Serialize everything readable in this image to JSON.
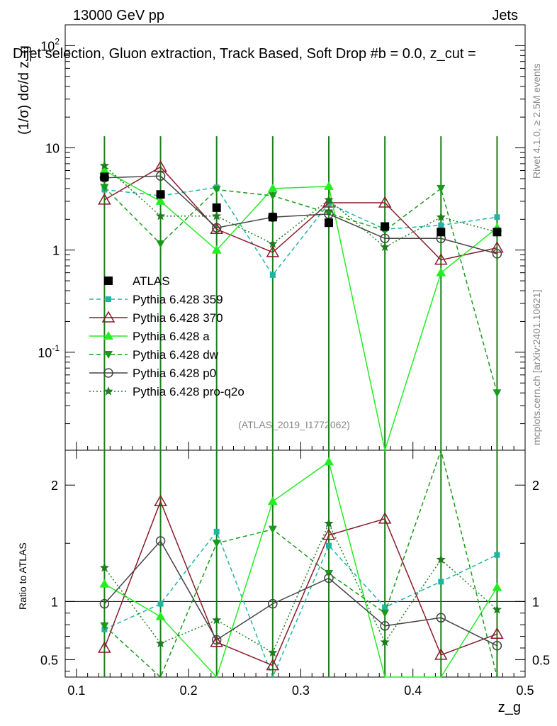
{
  "header": {
    "energy": "13000 GeV pp",
    "category": "Jets",
    "title": "Dijet selection, Gluon extraction, Track Based, Soft Drop #b = 0.0, z_cut =",
    "ref_label": "(ATLAS_2019_I1772062)",
    "side_rivet": "Rivet 4.1.0, ≥ 2.5M events",
    "side_mcplots": "mcplots.cern.ch [arXiv:2401.10621]"
  },
  "axes": {
    "top_ylabel": "(1/σ) dσ/d z_g",
    "bottom_ylabel": "Ratio to ATLAS",
    "xlabel": "z_g",
    "xlim": [
      0.09,
      0.5
    ],
    "top_ylim_log": [
      0.011,
      160
    ],
    "ratio_ylim": [
      0.35,
      2.3
    ],
    "x_ticks": [
      "0.1",
      "0.2",
      "0.3",
      "0.4",
      "0.5"
    ],
    "x_tick_values": [
      0.1,
      0.2,
      0.3,
      0.4,
      0.5
    ],
    "top_y_ticks": [
      "10^-1",
      "1",
      "10",
      "10^2"
    ],
    "top_y_tick_values": [
      0.1,
      1,
      10,
      100
    ],
    "ratio_ticks": [
      "0.5",
      "1",
      "2"
    ],
    "ratio_tick_values": [
      0.5,
      1,
      2
    ]
  },
  "chart_data": {
    "type": "line",
    "x": [
      0.125,
      0.175,
      0.225,
      0.275,
      0.325,
      0.375,
      0.425,
      0.475
    ],
    "reference": {
      "name": "ATLAS",
      "color": "#000000",
      "marker": "square",
      "values": [
        5.2,
        3.5,
        2.6,
        2.1,
        1.85,
        1.7,
        1.5,
        1.5
      ]
    },
    "series": [
      {
        "name": "Pythia 6.428 359",
        "color": "#1fb5a4",
        "dash": "dashed",
        "marker": "square-small",
        "values": [
          3.9,
          3.4,
          4.1,
          0.57,
          2.85,
          1.6,
          1.75,
          2.1
        ],
        "ratio": [
          0.76,
          0.98,
          1.6,
          0.27,
          1.48,
          0.95,
          1.17,
          1.4
        ]
      },
      {
        "name": "Pythia 6.428 370",
        "color": "#8b1a2b",
        "dash": "solid",
        "marker": "triangle-open",
        "values": [
          3.1,
          6.5,
          1.6,
          0.95,
          2.9,
          2.9,
          0.8,
          1.05
        ],
        "ratio": [
          0.6,
          1.86,
          0.65,
          0.45,
          1.57,
          1.71,
          0.54,
          0.72
        ]
      },
      {
        "name": "Pythia 6.428 a",
        "color": "#22ee22",
        "dash": "solid",
        "marker": "triangle",
        "values": [
          6.0,
          3.0,
          1.0,
          4.0,
          4.2,
          0.01,
          0.6,
          1.65
        ],
        "ratio": [
          1.15,
          0.87,
          0.33,
          1.86,
          2.2,
          0.0,
          0.34,
          1.12
        ]
      },
      {
        "name": "Pythia 6.428 dw",
        "color": "#1a9a1a",
        "dash": "dashed",
        "marker": "triangle-down",
        "values": [
          4.1,
          1.15,
          3.9,
          3.4,
          2.3,
          1.55,
          4.0,
          0.04
        ],
        "ratio": [
          0.79,
          0.33,
          1.5,
          1.62,
          1.24,
          0.9,
          2.4,
          0.03
        ]
      },
      {
        "name": "Pythia 6.428 p0",
        "color": "#444444",
        "dash": "solid",
        "marker": "circle-open",
        "values": [
          5.1,
          5.3,
          1.65,
          2.1,
          2.25,
          1.3,
          1.3,
          0.92
        ],
        "ratio": [
          0.98,
          1.52,
          0.67,
          0.98,
          1.2,
          0.79,
          0.86,
          0.62
        ]
      },
      {
        "name": "Pythia 6.428 pro-q2o",
        "color": "#1e7e1e",
        "dash": "dotted",
        "marker": "star",
        "values": [
          6.7,
          2.15,
          2.15,
          1.15,
          3.1,
          1.07,
          2.1,
          1.5
        ],
        "ratio": [
          1.29,
          0.64,
          0.84,
          0.56,
          1.67,
          0.65,
          1.36,
          0.93
        ]
      }
    ]
  }
}
